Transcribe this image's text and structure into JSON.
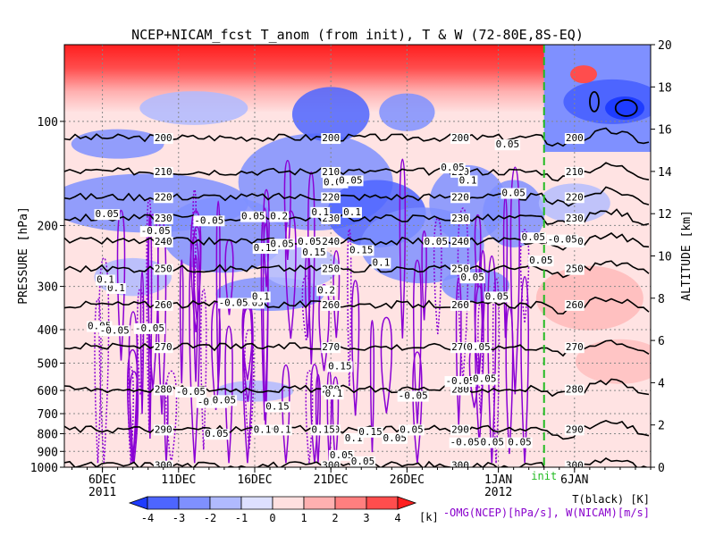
{
  "chart_data": {
    "type": "heatmap",
    "title": "NCEP+NICAM_fcst T_anom (from init), T & W  (72-80E,8S-EQ)",
    "ylabel_left": "PRESSURE [hPa]",
    "ylabel_right": "ALTITUDE [km]",
    "x_ticks": [
      {
        "label": "6DEC",
        "day": 6
      },
      {
        "label": "11DEC",
        "day": 11
      },
      {
        "label": "16DEC",
        "day": 16
      },
      {
        "label": "21DEC",
        "day": 21
      },
      {
        "label": "26DEC",
        "day": 26
      },
      {
        "label": "1JAN",
        "day": 32
      },
      {
        "label": "6JAN",
        "day": 37
      }
    ],
    "year_labels": [
      {
        "label": "2011",
        "day": 6
      },
      {
        "label": "2012",
        "day": 32
      }
    ],
    "xlim_days": [
      3.5,
      42
    ],
    "init_day": 35,
    "init_label": "init",
    "pressure_ticks": [
      100,
      200,
      300,
      400,
      500,
      600,
      700,
      800,
      900,
      1000
    ],
    "pressure_range": [
      1000,
      60
    ],
    "altitude_ticks": [
      0,
      2,
      4,
      6,
      8,
      10,
      12,
      14,
      16,
      18,
      20
    ],
    "altitude_range": [
      0,
      20
    ],
    "colorbar": {
      "ticks": [
        "-4",
        "-3",
        "-2",
        "-1",
        "0",
        "1",
        "2",
        "3",
        "4"
      ],
      "unit": "[k]",
      "colors": [
        "#1e3cff",
        "#4d65ff",
        "#7f90ff",
        "#b0baff",
        "#dde0ff",
        "#ffe0e0",
        "#ffb0b0",
        "#ff7f7f",
        "#ff4d4d",
        "#ff1e1e"
      ]
    },
    "temperature_contours": [
      {
        "level": 200,
        "altitude_km": 15.6,
        "label": "200"
      },
      {
        "level": 210,
        "altitude_km": 14.0,
        "label": "210"
      },
      {
        "level": 220,
        "altitude_km": 12.8,
        "label": "220"
      },
      {
        "level": 230,
        "altitude_km": 11.8,
        "label": "230"
      },
      {
        "level": 240,
        "altitude_km": 10.7,
        "label": "240"
      },
      {
        "level": 250,
        "altitude_km": 9.4,
        "label": "250"
      },
      {
        "level": 260,
        "altitude_km": 7.7,
        "label": "260"
      },
      {
        "level": 270,
        "altitude_km": 5.7,
        "label": "270"
      },
      {
        "level": 280,
        "altitude_km": 3.7,
        "label": "280"
      },
      {
        "level": 290,
        "altitude_km": 1.8,
        "label": "290"
      },
      {
        "level": 300,
        "altitude_km": 0.1,
        "label": "300"
      }
    ],
    "w_contour_labels": [
      {
        "label": "0.05",
        "day": 6.3,
        "alt": 12.0
      },
      {
        "label": "-0.05",
        "day": 13.0,
        "alt": 11.7
      },
      {
        "label": "-0.05",
        "day": 9.5,
        "alt": 11.2
      },
      {
        "label": "0.05",
        "day": 15.9,
        "alt": 11.9
      },
      {
        "label": "0.2",
        "day": 17.6,
        "alt": 11.9
      },
      {
        "label": "0.15",
        "day": 16.7,
        "alt": 10.4
      },
      {
        "label": "0.05",
        "day": 17.8,
        "alt": 10.6
      },
      {
        "label": "0.05",
        "day": 19.6,
        "alt": 10.7
      },
      {
        "label": "0.1",
        "day": 20.3,
        "alt": 12.1
      },
      {
        "label": "0.1",
        "day": 22.4,
        "alt": 12.1
      },
      {
        "label": "0.05",
        "day": 21.3,
        "alt": 13.5
      },
      {
        "label": "0.05",
        "day": 22.3,
        "alt": 13.6
      },
      {
        "label": "0.15",
        "day": 23.0,
        "alt": 10.3
      },
      {
        "label": "0.05",
        "day": 27.9,
        "alt": 10.7
      },
      {
        "label": "0.1",
        "day": 30.0,
        "alt": 13.6
      },
      {
        "label": "0.05",
        "day": 29.0,
        "alt": 14.2
      },
      {
        "label": "0.05",
        "day": 33.0,
        "alt": 13.0
      },
      {
        "label": "0.05",
        "day": 32.6,
        "alt": 15.3
      },
      {
        "label": "0.05",
        "day": 34.8,
        "alt": 9.8
      },
      {
        "label": "0.05",
        "day": 34.3,
        "alt": 10.9
      },
      {
        "label": "0.1",
        "day": 6.9,
        "alt": 8.5
      },
      {
        "label": "0.1",
        "day": 6.2,
        "alt": 8.9
      },
      {
        "label": "0.05",
        "day": 5.8,
        "alt": 6.7
      },
      {
        "label": "-0.05",
        "day": 6.8,
        "alt": 6.5
      },
      {
        "label": "-0.05",
        "day": 9.1,
        "alt": 6.6
      },
      {
        "label": "0.05",
        "day": 15.8,
        "alt": 7.8
      },
      {
        "label": "0.1",
        "day": 16.4,
        "alt": 8.1
      },
      {
        "label": "-0.05",
        "day": 14.6,
        "alt": 7.8
      },
      {
        "label": "0.2",
        "day": 20.7,
        "alt": 8.4
      },
      {
        "label": "0.15",
        "day": 19.9,
        "alt": 10.2
      },
      {
        "label": "0.1",
        "day": 24.3,
        "alt": 9.7
      },
      {
        "label": "0.05",
        "day": 30.3,
        "alt": 9.0
      },
      {
        "label": "0.05",
        "day": 31.9,
        "alt": 8.1
      },
      {
        "label": "-0.05",
        "day": 29.5,
        "alt": 4.1
      },
      {
        "label": "0.05",
        "day": 31.1,
        "alt": 4.2
      },
      {
        "label": "-0.05",
        "day": 13.2,
        "alt": 3.1
      },
      {
        "label": "-0.05",
        "day": 11.8,
        "alt": 3.6
      },
      {
        "label": "0.05",
        "day": 14.0,
        "alt": 3.2
      },
      {
        "label": "0.15",
        "day": 17.5,
        "alt": 2.9
      },
      {
        "label": "0.15",
        "day": 21.6,
        "alt": 4.8
      },
      {
        "label": "0.1",
        "day": 21.2,
        "alt": 3.5
      },
      {
        "label": "0.05",
        "day": 13.5,
        "alt": 1.6
      },
      {
        "label": "0.1",
        "day": 16.5,
        "alt": 1.8
      },
      {
        "label": "0.1",
        "day": 17.8,
        "alt": 1.8
      },
      {
        "label": "0.15",
        "day": 20.5,
        "alt": 1.8
      },
      {
        "label": "0.1",
        "day": 22.5,
        "alt": 1.4
      },
      {
        "label": "0.15",
        "day": 23.6,
        "alt": 1.7
      },
      {
        "label": "0.05",
        "day": 25.2,
        "alt": 1.4
      },
      {
        "label": "0.05",
        "day": 26.3,
        "alt": 1.8
      },
      {
        "label": "0.05",
        "day": 21.7,
        "alt": 0.6
      },
      {
        "label": "0.05",
        "day": 23.1,
        "alt": 0.3
      },
      {
        "label": "-0.05",
        "day": 29.8,
        "alt": 1.2
      },
      {
        "label": "0.05",
        "day": 31.6,
        "alt": 1.2
      },
      {
        "label": "0.05",
        "day": 33.4,
        "alt": 1.2
      },
      {
        "label": "-0.05",
        "day": 26.4,
        "alt": 3.4
      },
      {
        "label": "0.05",
        "day": 30.7,
        "alt": 5.7
      },
      {
        "label": "-0.05",
        "day": 36.2,
        "alt": 10.8
      }
    ],
    "legend": {
      "line1": "T(black) [K]",
      "line2": "-OMG(NCEP)[hPa/s], W(NICAM)[m/s]"
    }
  }
}
